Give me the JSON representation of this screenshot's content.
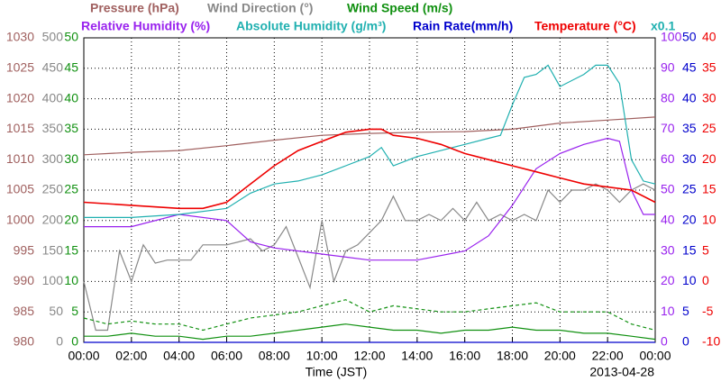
{
  "chart_data": {
    "type": "line",
    "legend_rows": [
      [
        "Pressure (hPa)",
        "Wind Direction (°)",
        "Wind Speed (m/s)"
      ],
      [
        "Relative Humidity (%)",
        "Absolute Humidity (g/m³)",
        "Rain Rate(mm/h)",
        "Temperature (°C)"
      ]
    ],
    "scale_note": "x0.1",
    "xlabel": "Time (JST)",
    "date": "2013-04-28",
    "xlim": [
      0,
      24
    ],
    "xticks": [
      {
        "value": 0,
        "label": "00:00"
      },
      {
        "value": 2,
        "label": "02:00"
      },
      {
        "value": 4,
        "label": "04:00"
      },
      {
        "value": 6,
        "label": "06:00"
      },
      {
        "value": 8,
        "label": "08:00"
      },
      {
        "value": 10,
        "label": "10:00"
      },
      {
        "value": 12,
        "label": "12:00"
      },
      {
        "value": 14,
        "label": "14:00"
      },
      {
        "value": 16,
        "label": "16:00"
      },
      {
        "value": 18,
        "label": "18:00"
      },
      {
        "value": 20,
        "label": "20:00"
      },
      {
        "value": 22,
        "label": "22:00"
      },
      {
        "value": 24,
        "label": "00:00"
      }
    ],
    "grid": true,
    "axes": [
      {
        "side": "left",
        "color": "#a0605f",
        "lim": [
          980,
          1030
        ],
        "ticks": [
          980,
          985,
          990,
          995,
          1000,
          1005,
          1010,
          1015,
          1020,
          1025,
          1030
        ]
      },
      {
        "side": "left",
        "color": "#888888",
        "lim": [
          0,
          500
        ],
        "ticks": [
          0,
          50,
          100,
          150,
          200,
          250,
          300,
          350,
          400,
          450,
          500
        ]
      },
      {
        "side": "left",
        "color": "#109010",
        "lim": [
          0,
          50
        ],
        "ticks": [
          0,
          5,
          10,
          15,
          20,
          25,
          30,
          35,
          40,
          45,
          50
        ]
      },
      {
        "side": "right",
        "color": "#9922ee",
        "lim": [
          0,
          100
        ],
        "ticks": [
          0,
          10,
          20,
          30,
          40,
          50,
          60,
          70,
          80,
          90,
          100
        ]
      },
      {
        "side": "right",
        "color": "#0000cc",
        "lim": [
          0,
          50
        ],
        "ticks": [
          0,
          5,
          10,
          15,
          20,
          25,
          30,
          35,
          40,
          45,
          50
        ]
      },
      {
        "side": "right",
        "color": "#ee0000",
        "lim": [
          -10,
          40
        ],
        "ticks": [
          -10,
          -5,
          0,
          5,
          10,
          15,
          20,
          25,
          30,
          35,
          40
        ]
      }
    ],
    "series": [
      {
        "name": "Pressure (hPa)",
        "color": "#a0605f",
        "axis": 0,
        "x": [
          0,
          2,
          4,
          6,
          8,
          10,
          12,
          14,
          16,
          18,
          20,
          22,
          24
        ],
        "values": [
          1010.8,
          1011.2,
          1011.5,
          1012.3,
          1013.2,
          1014,
          1014.3,
          1014.5,
          1014.6,
          1015,
          1016,
          1016.5,
          1017
        ]
      },
      {
        "name": "Wind Direction (°)",
        "color": "#888888",
        "axis": 1,
        "x": [
          0,
          0.5,
          1,
          1.5,
          2,
          2.5,
          3,
          3.5,
          4,
          4.5,
          5,
          5.5,
          6,
          6.5,
          7,
          7.5,
          8,
          8.5,
          9,
          9.5,
          10,
          10.5,
          11,
          11.5,
          12,
          12.5,
          13,
          13.5,
          14,
          14.5,
          15,
          15.5,
          16,
          16.5,
          17,
          17.5,
          18,
          18.5,
          19,
          19.5,
          20,
          20.5,
          21,
          21.5,
          22,
          22.5,
          23,
          23.5,
          24
        ],
        "values": [
          100,
          20,
          20,
          150,
          100,
          160,
          130,
          135,
          135,
          135,
          160,
          160,
          160,
          165,
          170,
          150,
          160,
          190,
          140,
          90,
          200,
          100,
          150,
          160,
          180,
          200,
          240,
          200,
          200,
          210,
          200,
          220,
          200,
          230,
          200,
          210,
          200,
          210,
          200,
          250,
          230,
          250,
          250,
          260,
          250,
          230,
          250,
          260,
          250
        ]
      },
      {
        "name": "Wind Speed (m/s)",
        "color": "#109010",
        "axis": 2,
        "x": [
          0,
          1,
          2,
          3,
          4,
          5,
          6,
          7,
          8,
          9,
          10,
          11,
          12,
          13,
          14,
          15,
          16,
          17,
          18,
          19,
          20,
          21,
          22,
          23,
          24
        ],
        "values": [
          1,
          1,
          1.5,
          1,
          1,
          0.5,
          1,
          1,
          1.5,
          2,
          2.5,
          3,
          2.5,
          2,
          2,
          1.5,
          2,
          2,
          2.5,
          2,
          2,
          1.5,
          1.5,
          1,
          0.5
        ]
      },
      {
        "color": "#109010",
        "axis": 2,
        "dashed": true,
        "x": [
          0,
          1,
          2,
          3,
          4,
          5,
          6,
          7,
          8,
          9,
          10,
          11,
          12,
          13,
          14,
          15,
          16,
          17,
          18,
          19,
          20,
          21,
          22,
          23,
          24
        ],
        "values": [
          4,
          3,
          3.5,
          3,
          3,
          2,
          3,
          4,
          4.5,
          5,
          6,
          7,
          5,
          6,
          5.5,
          5,
          5,
          5.5,
          6,
          6.5,
          5,
          5,
          5,
          3,
          2
        ]
      },
      {
        "name": "Relative Humidity (%)",
        "color": "#9922ee",
        "axis": 3,
        "x": [
          0,
          2,
          4,
          6,
          7,
          8,
          10,
          12,
          13,
          14,
          16,
          17,
          18,
          19,
          20,
          21,
          22,
          22.5,
          23,
          23.5,
          24
        ],
        "values": [
          38,
          38,
          42,
          40,
          33,
          31,
          29,
          27,
          27,
          27,
          30,
          35,
          45,
          57,
          62,
          65,
          67,
          66,
          50,
          42,
          42
        ]
      },
      {
        "name": "Absolute Humidity (g/m³)",
        "color": "#20b0b0",
        "axis": 3,
        "x": [
          0,
          2,
          4,
          6,
          7,
          8,
          9,
          10,
          11,
          12,
          12.5,
          13,
          14,
          15,
          16,
          17,
          17.5,
          18,
          18.5,
          19,
          19.5,
          20,
          21,
          21.5,
          22,
          22.5,
          23,
          23.5,
          24
        ],
        "values": [
          41,
          41,
          42,
          44,
          49,
          52,
          53,
          55,
          58,
          61,
          64,
          58,
          61,
          63,
          65,
          67,
          68,
          78,
          87,
          88,
          91,
          84,
          88,
          91,
          91,
          85,
          60,
          53,
          52
        ]
      },
      {
        "name": "Rain Rate(mm/h)",
        "color": "#0000cc",
        "axis": 4,
        "x": [
          0,
          6,
          12,
          18,
          24
        ],
        "values": [
          0,
          0,
          0,
          0,
          0
        ]
      },
      {
        "name": "Temperature (°C)",
        "color": "#ee0000",
        "axis": 5,
        "x": [
          0,
          2,
          4,
          5,
          6,
          7,
          8,
          9,
          10,
          11,
          12,
          12.5,
          13,
          14,
          15,
          16,
          17,
          18,
          19,
          20,
          21,
          22,
          23,
          24
        ],
        "values": [
          13,
          12.5,
          12,
          12,
          13,
          16,
          19,
          21.5,
          23,
          24.5,
          25,
          25,
          24,
          23.5,
          22.5,
          21,
          20,
          19,
          18,
          17,
          16,
          15.5,
          15,
          13
        ]
      }
    ]
  }
}
